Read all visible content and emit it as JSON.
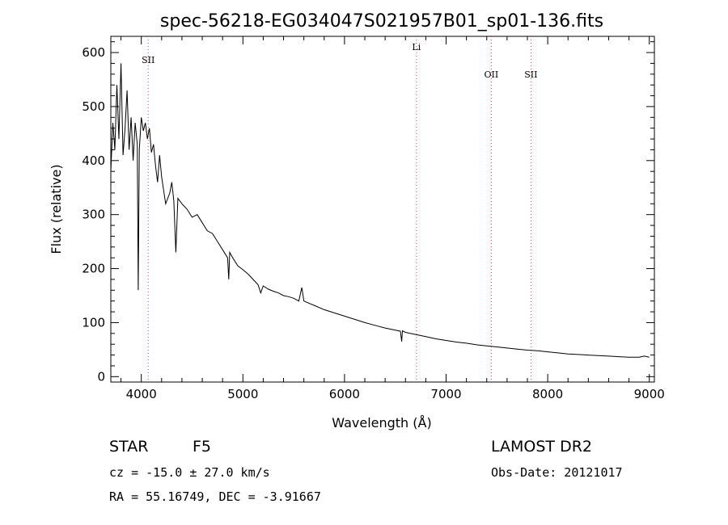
{
  "title": "spec-56218-EG034047S021957B01_sp01-136.fits",
  "chart_data": {
    "type": "line",
    "xlabel": "Wavelength (Å)",
    "ylabel": "Flux (relative)",
    "xlim": [
      3700,
      9050
    ],
    "ylim": [
      -10,
      630
    ],
    "xticks": [
      4000,
      5000,
      6000,
      7000,
      8000,
      9000
    ],
    "yticks": [
      0,
      100,
      200,
      300,
      400,
      500,
      600
    ],
    "series": [
      {
        "color": "#000000",
        "x": [
          3700,
          3720,
          3740,
          3760,
          3780,
          3800,
          3820,
          3840,
          3860,
          3880,
          3900,
          3920,
          3940,
          3960,
          3970,
          3980,
          4000,
          4020,
          4040,
          4060,
          4080,
          4100,
          4120,
          4140,
          4160,
          4180,
          4200,
          4240,
          4280,
          4300,
          4320,
          4340,
          4360,
          4400,
          4450,
          4500,
          4550,
          4600,
          4650,
          4700,
          4750,
          4800,
          4850,
          4861,
          4870,
          4900,
          4950,
          5000,
          5050,
          5100,
          5150,
          5175,
          5200,
          5250,
          5300,
          5350,
          5400,
          5450,
          5500,
          5550,
          5580,
          5600,
          5650,
          5700,
          5800,
          5900,
          6000,
          6100,
          6200,
          6300,
          6400,
          6500,
          6550,
          6563,
          6570,
          6600,
          6700,
          6800,
          6900,
          7000,
          7100,
          7200,
          7300,
          7400,
          7500,
          7600,
          7700,
          7800,
          7900,
          8000,
          8100,
          8200,
          8300,
          8400,
          8500,
          8600,
          8700,
          8800,
          8900,
          8950,
          9000
        ],
        "y": [
          380,
          470,
          420,
          540,
          440,
          580,
          410,
          460,
          530,
          420,
          480,
          400,
          470,
          430,
          160,
          420,
          480,
          455,
          470,
          440,
          460,
          415,
          430,
          390,
          360,
          410,
          370,
          320,
          340,
          360,
          325,
          230,
          330,
          320,
          310,
          295,
          300,
          285,
          270,
          265,
          250,
          235,
          220,
          180,
          230,
          220,
          205,
          198,
          190,
          180,
          170,
          155,
          168,
          162,
          158,
          155,
          150,
          148,
          145,
          140,
          165,
          140,
          136,
          132,
          124,
          118,
          112,
          106,
          100,
          95,
          90,
          86,
          84,
          65,
          85,
          82,
          78,
          74,
          70,
          67,
          64,
          62,
          59,
          57,
          55,
          53,
          51,
          49,
          48,
          46,
          44,
          42,
          41,
          40,
          39,
          38,
          37,
          36,
          36,
          38,
          36
        ]
      }
    ],
    "reference_lines": [
      {
        "label": "SII",
        "x": 4068
      },
      {
        "label": "Li",
        "x": 6708
      },
      {
        "label": "OII",
        "x": 7445
      },
      {
        "label": "SII",
        "x": 7835
      }
    ]
  },
  "footer": {
    "object_class": "STAR",
    "subclass": "F5",
    "survey": "LAMOST DR2",
    "cz": "cz = -15.0 ± 27.0 km/s",
    "obs_date": "Obs-Date: 20121017",
    "coords": "RA =  55.16749, DEC =  -3.91667"
  }
}
